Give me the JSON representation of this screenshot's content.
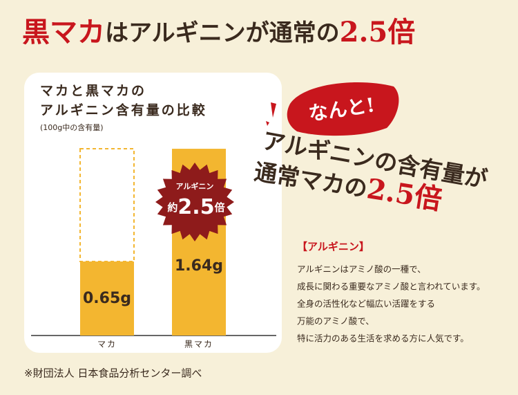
{
  "heading": {
    "parts": [
      "黒マカ",
      "はアルギニンが通常の",
      "2.5倍"
    ]
  },
  "chart_data": {
    "type": "bar",
    "title": [
      "マカと黒マカの",
      "アルギニン含有量の比較"
    ],
    "subtitle": "(100g中の含有量)",
    "categories": [
      "マカ",
      "黒マカ"
    ],
    "values": [
      0.65,
      1.64
    ],
    "value_labels": [
      "0.65g",
      "1.64g"
    ],
    "color": "#f3b630"
  },
  "badge": {
    "top": "アルギニン",
    "prefix": "約",
    "value": "2.5",
    "suffix": "倍"
  },
  "callout": {
    "exclaim": "なんと!",
    "lines": [
      "アルギニンの含有量が",
      "通常マカの"
    ],
    "highlight": "2.5倍"
  },
  "note": {
    "title": "【アルギニン】",
    "lines": [
      "アルギニンはアミノ酸の一種で、",
      "成長に関わる重要なアミノ酸と言われています。",
      "全身の活性化など幅広い活躍をする",
      "万能のアミノ酸で、",
      "特に活力のある生活を求める方に人気です。"
    ]
  },
  "footnote": "※財団法人 日本食品分析センター調べ"
}
